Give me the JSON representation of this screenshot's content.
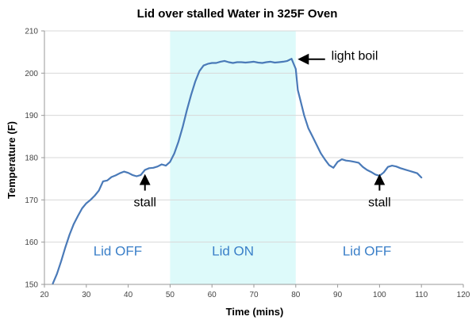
{
  "chart_data": {
    "type": "line",
    "title": "Lid over stalled Water in 325F Oven",
    "xlabel": "Time (mins)",
    "ylabel": "Temperature (F)",
    "xlim": [
      20,
      120
    ],
    "ylim": [
      150,
      210
    ],
    "xticks": [
      20,
      30,
      40,
      50,
      60,
      70,
      80,
      90,
      100,
      110,
      120
    ],
    "yticks": [
      150,
      160,
      170,
      180,
      190,
      200,
      210
    ],
    "grid": "horizontal",
    "colors": {
      "line": "#4a7ab8",
      "shade": "#ddfafa",
      "region_text": "#3a7fc8",
      "grid": "#d8d8d8"
    },
    "series": [
      {
        "x": [
          22,
          23,
          24,
          25,
          26,
          27,
          28,
          29,
          30,
          31,
          32,
          33,
          34,
          35,
          36,
          37,
          38,
          39,
          40,
          41,
          42,
          43,
          44,
          45,
          46,
          47,
          48,
          49,
          50,
          51,
          52,
          53,
          54,
          55,
          56,
          57,
          58,
          59,
          60,
          61,
          62,
          63,
          64,
          65,
          66,
          67,
          68,
          69,
          70,
          71,
          72,
          73,
          74,
          75,
          76,
          77,
          78,
          79,
          80,
          80.5,
          81,
          82,
          83,
          84,
          85,
          86,
          87,
          88,
          89,
          90,
          91,
          92,
          93,
          94,
          95,
          96,
          97,
          98,
          99,
          100,
          101,
          102,
          103,
          104,
          105,
          106,
          107,
          108,
          109,
          110
        ],
        "values": [
          150.2,
          152.5,
          155.5,
          158.8,
          161.8,
          164.3,
          166.2,
          168.0,
          169.2,
          170.0,
          171.0,
          172.2,
          174.4,
          174.6,
          175.4,
          175.8,
          176.3,
          176.7,
          176.4,
          175.9,
          175.6,
          175.9,
          177.1,
          177.5,
          177.6,
          177.9,
          178.4,
          178.1,
          179.0,
          181.0,
          183.8,
          187.2,
          191.2,
          194.8,
          198.0,
          200.5,
          201.8,
          202.2,
          202.4,
          202.4,
          202.7,
          202.9,
          202.6,
          202.4,
          202.6,
          202.6,
          202.5,
          202.6,
          202.7,
          202.5,
          202.4,
          202.6,
          202.7,
          202.5,
          202.6,
          202.7,
          202.9,
          203.4,
          201.0,
          196.0,
          194.0,
          190.0,
          187.0,
          185.0,
          183.0,
          181.0,
          179.5,
          178.2,
          177.6,
          179.0,
          179.6,
          179.3,
          179.2,
          179.0,
          178.8,
          177.8,
          177.1,
          176.6,
          176.0,
          175.7,
          176.5,
          177.8,
          178.1,
          177.9,
          177.5,
          177.2,
          176.9,
          176.6,
          176.3,
          175.3
        ]
      }
    ],
    "shaded_regions": [
      {
        "x_start": 50,
        "x_end": 80
      }
    ],
    "region_labels": [
      {
        "text": "Lid OFF",
        "x": 37.5,
        "y": 156.8
      },
      {
        "text": "Lid ON",
        "x": 65,
        "y": 156.8
      },
      {
        "text": "Lid OFF",
        "x": 97,
        "y": 156.8
      }
    ],
    "annotations": [
      {
        "text": "stall",
        "x": 44,
        "y": 168.5
      },
      {
        "text": "stall",
        "x": 100,
        "y": 168.5
      },
      {
        "text": "light boil",
        "x": 88.5,
        "y": 203.2
      }
    ],
    "arrows": [
      {
        "from": [
          44,
          172.2
        ],
        "to": [
          44,
          175.6
        ]
      },
      {
        "from": [
          100,
          172.2
        ],
        "to": [
          100,
          175.6
        ]
      },
      {
        "from": [
          87,
          203.3
        ],
        "to": [
          81,
          203.3
        ]
      }
    ]
  }
}
